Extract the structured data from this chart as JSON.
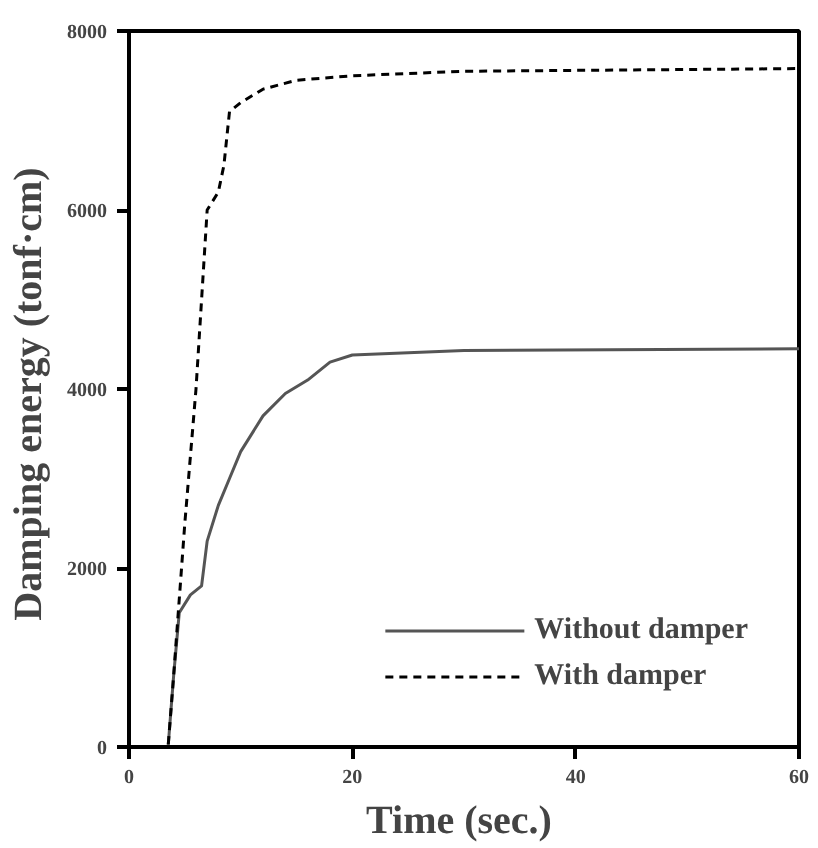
{
  "chart_data": {
    "type": "line",
    "xlabel": "Time  (sec.)",
    "ylabel": "Damping energy  (tonf·cm)",
    "xlim": [
      0,
      60
    ],
    "ylim": [
      0,
      8000
    ],
    "xticks": [
      0,
      20,
      40,
      60
    ],
    "yticks": [
      0,
      2000,
      4000,
      6000,
      8000
    ],
    "grid": false,
    "legend": "bottom right",
    "series": [
      {
        "name": "Without damper",
        "color": "#555555",
        "line_style": "solid",
        "x": [
          0,
          3.5,
          4,
          4.5,
          5.5,
          6.5,
          7,
          8,
          9,
          10,
          12,
          14,
          16,
          18,
          20,
          30,
          60
        ],
        "values": [
          0,
          0,
          800,
          1500,
          1700,
          1800,
          2300,
          2700,
          3000,
          3300,
          3700,
          3950,
          4100,
          4300,
          4380,
          4430,
          4450
        ]
      },
      {
        "name": "With damper",
        "color": "#000000",
        "line_style": "dashed",
        "x": [
          0,
          3.5,
          4,
          5,
          6,
          6.5,
          7,
          8,
          8.5,
          9,
          10,
          12,
          15,
          20,
          30,
          60
        ],
        "values": [
          0,
          0,
          800,
          2500,
          4000,
          5000,
          6000,
          6200,
          6500,
          7100,
          7200,
          7350,
          7450,
          7500,
          7550,
          7580
        ]
      }
    ]
  }
}
